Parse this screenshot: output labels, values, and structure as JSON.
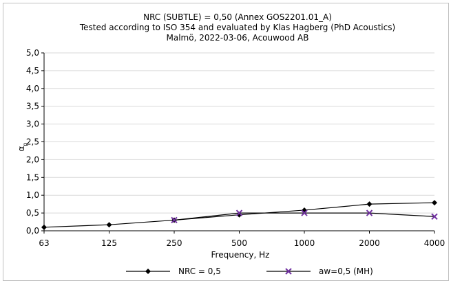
{
  "chart_data": {
    "type": "line",
    "title": [
      "NRC (SUBTLE) = 0,50 (Annex GOS2201.01_A)",
      "Tested according to ISO 354 and evaluated by Klas Hagberg (PhD Acoustics)",
      "Malmö, 2022-03-06, Acouwood AB"
    ],
    "xlabel": "Frequency, Hz",
    "ylabel": "αp",
    "ylabel_main": "α",
    "ylabel_sub": "p",
    "categories": [
      "63",
      "125",
      "250",
      "500",
      "1000",
      "2000",
      "4000"
    ],
    "ylim": [
      0,
      5
    ],
    "y_ticks": [
      "0,0",
      "0,5",
      "1,0",
      "1,5",
      "2,0",
      "2,5",
      "3,0",
      "3,5",
      "4,0",
      "4,5",
      "5,0"
    ],
    "grid": "horizontal",
    "legend_position": "bottom",
    "series": [
      {
        "name": "NRC = 0,5",
        "marker": "diamond",
        "color": "#000000",
        "values": [
          0.1,
          0.17,
          0.3,
          0.45,
          0.58,
          0.75,
          0.79
        ]
      },
      {
        "name": "aw=0,5 (MH)",
        "marker": "x",
        "color": "#7030a0",
        "line_color": "#000000",
        "values": [
          null,
          null,
          0.3,
          0.5,
          0.5,
          0.5,
          0.4
        ]
      }
    ]
  }
}
